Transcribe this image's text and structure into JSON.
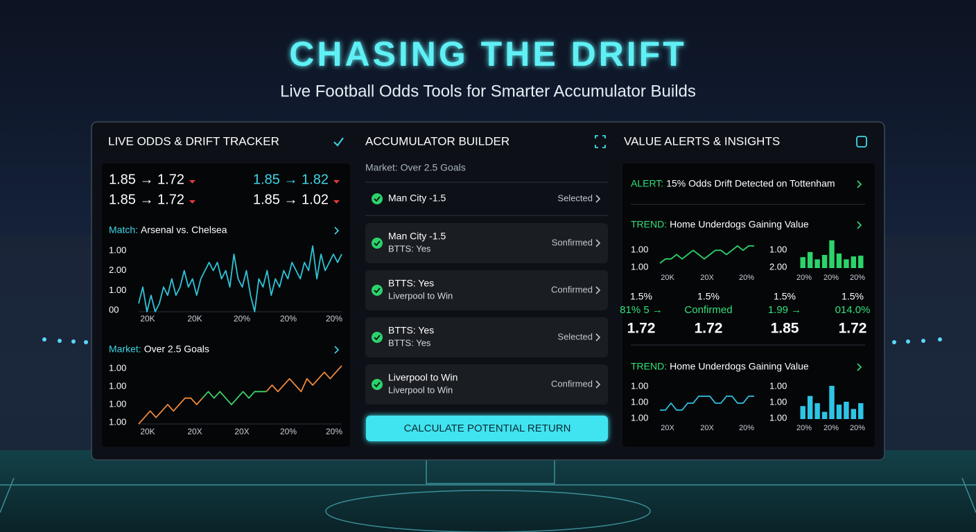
{
  "header": {
    "title": "CHASING THE DRIFT",
    "subtitle": "Live Football Odds Tools for Smarter Accumulator Builds"
  },
  "tracker": {
    "title": "LIVE ODDS & DRIFT TRACKER",
    "odds": [
      {
        "text": "1.85 → 1.72",
        "color": "#ffffff"
      },
      {
        "text": "1.85 → 1.82",
        "color": "#3fd6e6"
      },
      {
        "text": "1.85 → 1.72",
        "color": "#ffffff"
      },
      {
        "text": "1.85 → 1.02",
        "color": "#ffffff"
      }
    ],
    "charts": [
      {
        "label": "Match:",
        "text": "Arsenal vs. Chelsea",
        "y_labels": [
          "1.00",
          "2.00",
          "1.00",
          "00"
        ],
        "x_labels": [
          "20K",
          "20K",
          "20%",
          "20%",
          "20%"
        ],
        "series": [
          {
            "color": "#2ec4d6",
            "values": [
              3,
              5,
              2,
              4,
              2,
              3,
              5,
              4,
              6,
              4,
              5,
              7,
              5,
              6,
              4,
              6,
              7,
              8,
              7,
              8,
              6,
              7,
              5,
              9,
              6,
              5,
              7,
              4,
              2,
              6,
              5,
              7,
              4,
              6,
              5,
              7,
              6,
              8,
              7,
              6,
              8,
              7,
              10,
              6,
              9,
              7,
              8,
              9,
              8,
              9
            ]
          }
        ]
      },
      {
        "label": "Market:",
        "text": "Over 2.5 Goals",
        "y_labels": [
          "1.00",
          "1.00",
          "1.00",
          "1.00"
        ],
        "x_labels": [
          "20K",
          "20X",
          "20X",
          "20%",
          "20%"
        ],
        "series": [
          {
            "color": "#f08a3c",
            "values": [
              1,
              2,
              3,
              2,
              3,
              4,
              3,
              4,
              5,
              5,
              4,
              5,
              null,
              null,
              null,
              null,
              null,
              null,
              null,
              null,
              null,
              null,
              6,
              7,
              6,
              7,
              8,
              7,
              6,
              8,
              7,
              8,
              9,
              8,
              9,
              10
            ]
          },
          {
            "color": "#3ad66a",
            "values": [
              null,
              null,
              null,
              null,
              null,
              null,
              null,
              null,
              null,
              null,
              null,
              5,
              6,
              5,
              6,
              5,
              4,
              5,
              6,
              5,
              6,
              6,
              6,
              null,
              null,
              null,
              null,
              null,
              null,
              null,
              null,
              null,
              null,
              null,
              null,
              null
            ]
          }
        ]
      }
    ]
  },
  "builder": {
    "title": "ACCUMULATOR BUILDER",
    "market": "Market: Over 2.5 Goals",
    "items": [
      {
        "lines": [
          "Man City -1.5"
        ],
        "status": "Selected"
      },
      {
        "lines": [
          "Man City -1.5",
          "BTTS: Yes"
        ],
        "status": "Sonfirmed"
      },
      {
        "lines": [
          "BTTS: Yes",
          "Liverpool to Win"
        ],
        "status": "Confirmed"
      },
      {
        "lines": [
          "BTTS: Yes",
          "BTTS: Yes"
        ],
        "status": "Selected"
      },
      {
        "lines": [
          "Liverpool to Win",
          "Liverpool to Win"
        ],
        "status": "Confirmed"
      }
    ],
    "button": "CALCULATE POTENTIAL RETURN"
  },
  "insights": {
    "title": "VALUE ALERTS & INSIGHTS",
    "alert": {
      "label": "ALERT:",
      "text": "15% Odds Drift Detected on Tottenham"
    },
    "trends": [
      {
        "label": "TREND:",
        "text": "Home Underdogs Gaining Value",
        "line": {
          "color": "#2bd46a",
          "y_labels": [
            "1.00",
            "1.00"
          ],
          "x_labels": [
            "20K",
            "20X",
            "20%"
          ],
          "values": [
            4,
            5,
            5,
            6,
            5,
            6,
            7,
            6,
            5,
            6,
            7,
            7,
            6,
            7,
            8,
            7,
            8,
            8
          ]
        },
        "bars": {
          "color": "#2bd46a",
          "y_labels": [
            "1.00",
            "2.00"
          ],
          "x_labels": [
            "20%",
            "20%",
            "20%"
          ],
          "values": [
            15,
            22,
            12,
            18,
            38,
            20,
            12,
            16,
            17
          ]
        }
      },
      {
        "label": "TREND:",
        "text": "Home Underdogs Gaining Value",
        "line": {
          "color": "#2ec4e6",
          "y_labels": [
            "1.00",
            "1.00",
            "1.00"
          ],
          "x_labels": [
            "20X",
            "20X",
            "20%"
          ],
          "values": [
            5,
            5,
            6,
            5,
            5,
            6,
            6,
            7,
            7,
            7,
            6,
            6,
            7,
            7,
            6,
            6,
            7,
            7
          ]
        },
        "bars": {
          "color": "#2ec4e6",
          "y_labels": [
            "1.00",
            "1.00",
            "1.00"
          ],
          "x_labels": [
            "20%",
            "20%",
            "20%"
          ],
          "values": [
            18,
            32,
            22,
            10,
            46,
            20,
            24,
            14,
            22
          ]
        }
      }
    ],
    "stats": [
      {
        "pct": "1.5%",
        "change": "81% 5 →",
        "odds": "1.72"
      },
      {
        "pct": "1.5%",
        "change": "Confirmed",
        "odds": "1.72"
      },
      {
        "pct": "1.5%",
        "change": "1.99 →",
        "odds": "1.85"
      },
      {
        "pct": "1.5%",
        "change": "014.0%",
        "odds": "1.72"
      }
    ]
  }
}
